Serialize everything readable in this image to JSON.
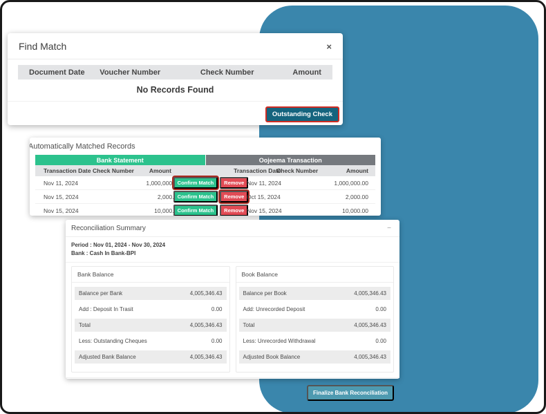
{
  "colors": {
    "background_shape": "#3a86ac",
    "accent_green": "#2cc28d",
    "accent_gray": "#75797e",
    "remove_red": "#e14b55",
    "highlight_red": "#a92a20",
    "teal_button": "#15647e",
    "finalize_button": "#4e9ab0"
  },
  "find_match_dialog": {
    "title": "Find Match",
    "close_icon": "×",
    "columns": [
      "Document Date",
      "Voucher Number",
      "Check Number",
      "Amount"
    ],
    "empty_message": "No Records Found",
    "outstanding_check_button": "Outstanding Check"
  },
  "matched_records": {
    "title": "Automatically Matched Records",
    "tabs": [
      {
        "label": "Bank Statement"
      },
      {
        "label": "Oojeema Transaction"
      }
    ],
    "columns_left": [
      "Transaction Date",
      "Check Number",
      "Amount"
    ],
    "columns_right": [
      "Transaction Date",
      "Check Number",
      "Amount"
    ],
    "confirm_label": "Confirm Match",
    "remove_label": "Remove",
    "rows": [
      {
        "bank_date": "Nov 11, 2024",
        "bank_check": "",
        "bank_amount": "1,000,000.00",
        "book_date": "Nov 11, 2024",
        "book_check": "",
        "book_amount": "1,000,000.00"
      },
      {
        "bank_date": "Nov 15, 2024",
        "bank_check": "",
        "bank_amount": "2,000.00",
        "book_date": "Oct 15, 2024",
        "book_check": "",
        "book_amount": "2,000.00"
      },
      {
        "bank_date": "Nov 15, 2024",
        "bank_check": "",
        "bank_amount": "10,000.00",
        "book_date": "Nov 15, 2024",
        "book_check": "",
        "book_amount": "10,000.00"
      }
    ]
  },
  "reconciliation_summary": {
    "title": "Reconciliation Summary",
    "collapse_icon": "−",
    "period_label": "Period : Nov 01, 2024 - Nov 30, 2024",
    "bank_label": "Bank : Cash In Bank-BPI",
    "bank_balance": {
      "title": "Bank Balance",
      "rows": [
        {
          "label": "Balance per Bank",
          "value": "4,005,346.43"
        },
        {
          "label": "Add : Deposit In Trasit",
          "value": "0.00"
        },
        {
          "label": "Total",
          "value": "4,005,346.43"
        },
        {
          "label": "Less: Outstanding Cheques",
          "value": "0.00"
        },
        {
          "label": "Adjusted Bank Balance",
          "value": "4,005,346.43"
        }
      ]
    },
    "book_balance": {
      "title": "Book Balance",
      "rows": [
        {
          "label": "Balance per Book",
          "value": "4,005,346.43"
        },
        {
          "label": "Add: Unrecorded Deposit",
          "value": "0.00"
        },
        {
          "label": "Total",
          "value": "4,005,346.43"
        },
        {
          "label": "Less: Unrecorded Withdrawal",
          "value": "0.00"
        },
        {
          "label": "Adjusted Book Balance",
          "value": "4,005,346.43"
        }
      ]
    },
    "finalize_button": "Finalize Bank Reconciliation"
  }
}
